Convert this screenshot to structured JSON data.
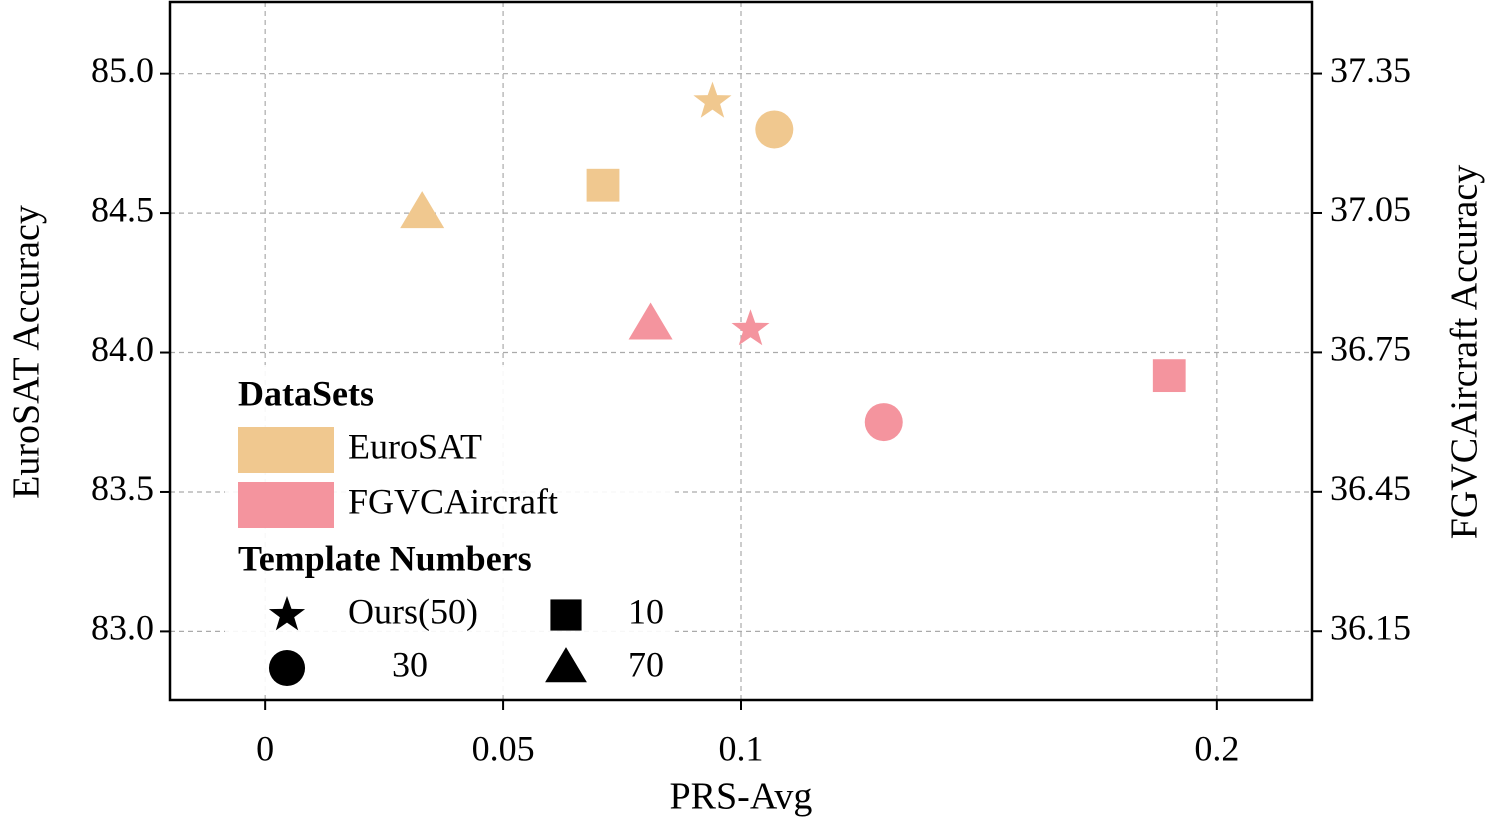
{
  "chart_data": {
    "type": "scatter",
    "xlabel": "PRS-Avg",
    "ylabel": "EuroSAT Accuracy",
    "y2label": "FGVCAircraft Accuracy",
    "xlim": [
      -0.02,
      0.22
    ],
    "xticks": [
      0,
      0.05,
      0.1,
      0.2
    ],
    "ylim": [
      82.754,
      85.257
    ],
    "yticks": [
      {
        "value": 83,
        "label": "83.0"
      },
      83.5,
      {
        "value": 84,
        "label": "84.0"
      },
      84.5,
      {
        "value": 85,
        "label": "85.0"
      }
    ],
    "y2lim": [
      36.002,
      37.504
    ],
    "y2ticks": [
      36.15,
      36.45,
      36.75,
      37.05,
      37.35
    ],
    "grid": true,
    "legend": "lower left",
    "legend_title": "DataSets",
    "marker_legend_title": "Template Numbers",
    "markers": [
      {
        "label": "Ours(50)",
        "shape": "star"
      },
      {
        "label": "30",
        "shape": "circle"
      },
      {
        "label": "10",
        "shape": "square"
      },
      {
        "label": "70",
        "shape": "triangle"
      }
    ],
    "series": [
      {
        "name": "EuroSAT",
        "color": "#f0c88f",
        "axis": "y",
        "x": [
          0.094,
          0.107,
          0.071,
          0.033
        ],
        "values": [
          84.9,
          84.8,
          84.6,
          84.5
        ]
      },
      {
        "name": "FGVCAircraft",
        "color": "#f4949e",
        "axis": "y2",
        "x": [
          0.102,
          0.13,
          0.19,
          0.081
        ],
        "values": [
          36.8,
          36.6,
          36.7,
          36.81
        ]
      }
    ]
  }
}
